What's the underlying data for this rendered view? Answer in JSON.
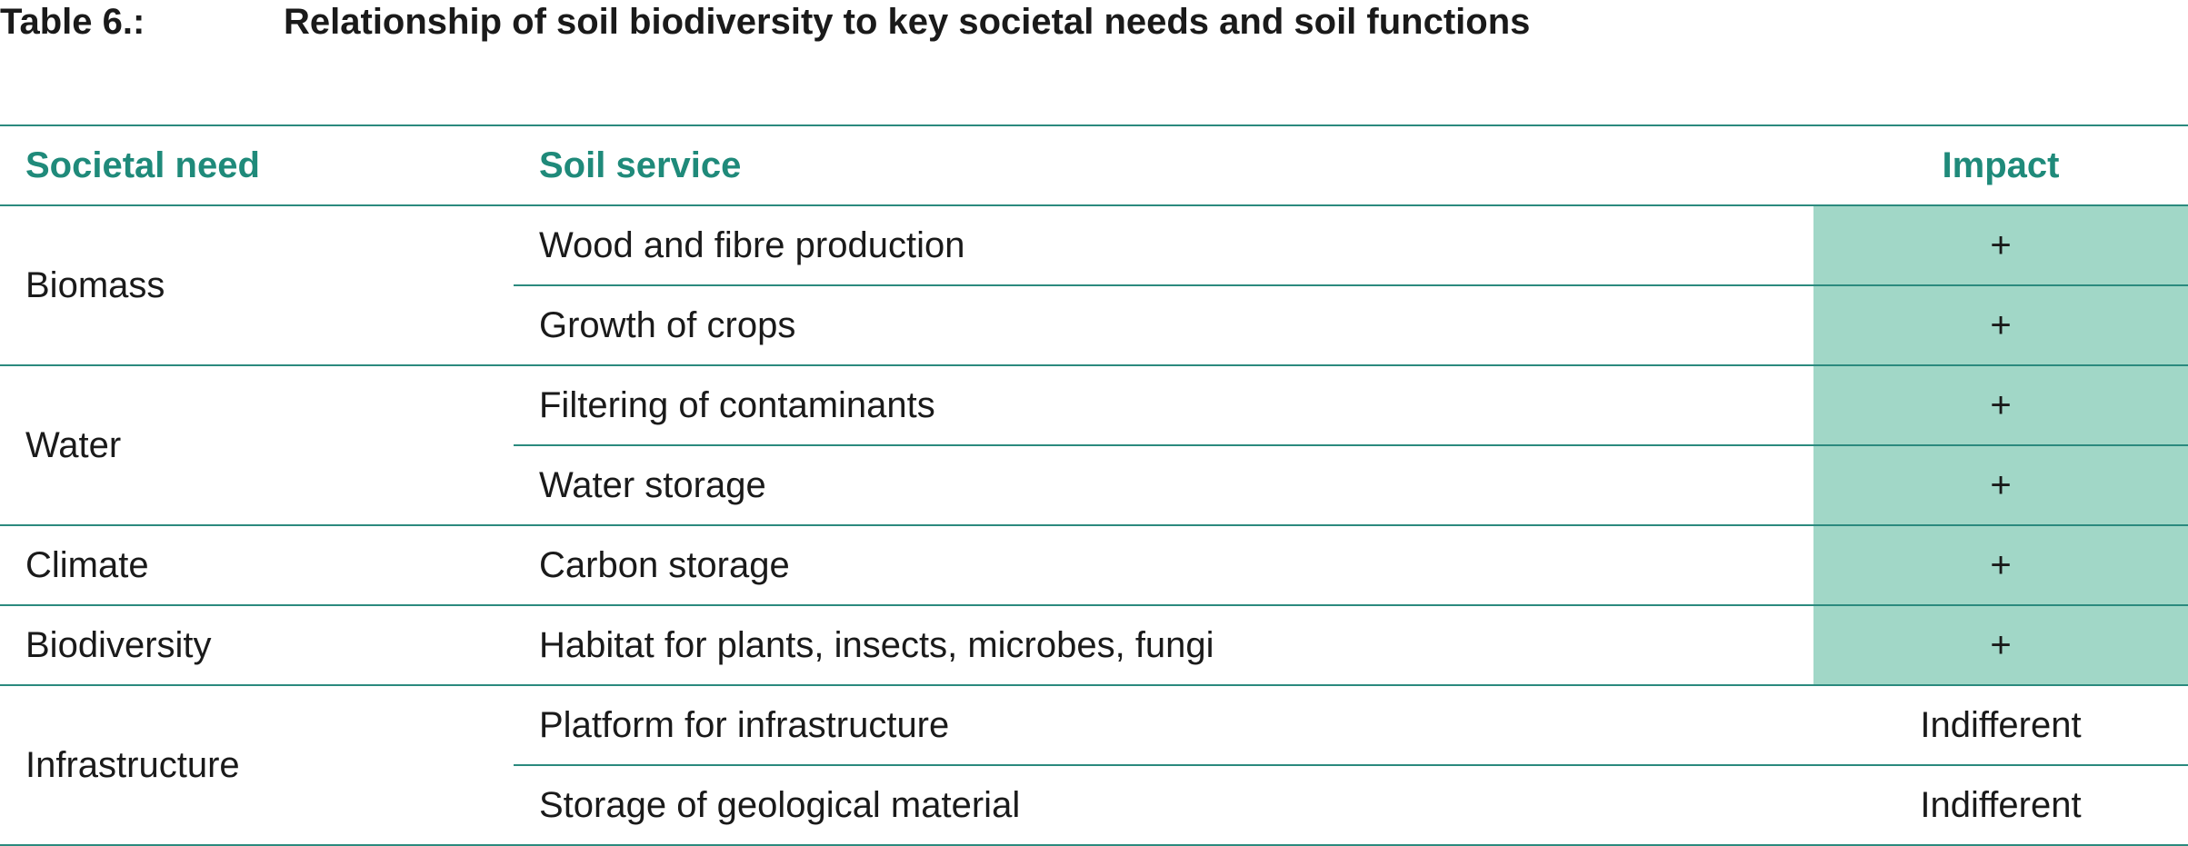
{
  "caption": {
    "number": "Table 6.:",
    "title": "Relationship of soil biodiversity to key societal needs and soil functions"
  },
  "colors": {
    "header_text": "#1f8a7a",
    "rule": "#2b8a7e",
    "positive_fill": "#a1d7c7"
  },
  "table": {
    "headers": [
      "Societal need",
      "Soil service",
      "Impact"
    ],
    "groups": [
      {
        "need": "Biomass",
        "rows": [
          {
            "service": "Wood and fibre production",
            "impact": "+"
          },
          {
            "service": "Growth of crops",
            "impact": "+"
          }
        ]
      },
      {
        "need": "Water",
        "rows": [
          {
            "service": "Filtering of contaminants",
            "impact": "+"
          },
          {
            "service": "Water storage",
            "impact": "+"
          }
        ]
      },
      {
        "need": "Climate",
        "rows": [
          {
            "service": "Carbon storage",
            "impact": "+"
          }
        ]
      },
      {
        "need": "Biodiversity",
        "rows": [
          {
            "service": "Habitat for plants, insects, microbes, fungi",
            "impact": "+"
          }
        ]
      },
      {
        "need": "Infrastructure",
        "rows": [
          {
            "service": "Platform for infrastructure",
            "impact": "Indifferent"
          },
          {
            "service": "Storage of geological material",
            "impact": "Indifferent"
          }
        ]
      }
    ]
  }
}
